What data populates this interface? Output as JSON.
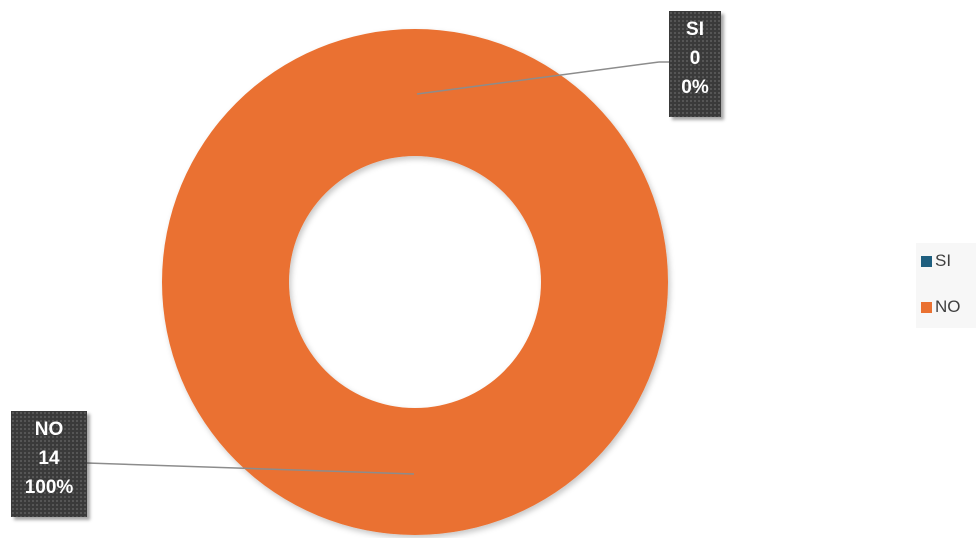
{
  "chart_data": {
    "type": "pie",
    "style": "donut",
    "title": "",
    "categories": [
      "SI",
      "NO"
    ],
    "values": [
      0,
      14
    ],
    "percentages": [
      "0%",
      "100%"
    ],
    "colors": [
      "#1f5f7f",
      "#ea7131"
    ],
    "legend_placement": "right"
  },
  "labels": {
    "si": {
      "name": "SI",
      "value": "0",
      "percent": "0%"
    },
    "no": {
      "name": "NO",
      "value": "14",
      "percent": "100%"
    }
  },
  "legend": {
    "items": [
      {
        "label": "SI",
        "color": "#1f5f7f"
      },
      {
        "label": "NO",
        "color": "#ea7131"
      }
    ]
  }
}
